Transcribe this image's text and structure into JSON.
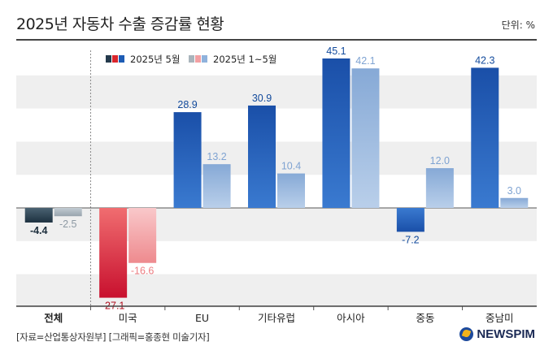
{
  "title": "2025년 자동차 수출 증감률 현황",
  "unit_label": "단위: %",
  "source": "[자료=산업통상자원부] [그래픽=홍종현 미술기자]",
  "brand": "NEWSPIM",
  "colors": {
    "may_blue": "#1d5cb4",
    "may_red": "#d9262c",
    "may_dark": "#243a4c",
    "ytd_blue": "#8fb2dc",
    "ytd_red": "#f2a0a3",
    "ytd_dark": "#a9b4bc",
    "band": "#efefef"
  },
  "chart_data": {
    "type": "bar",
    "categories": [
      "전체",
      "미국",
      "EU",
      "기타유럽",
      "아시아",
      "중동",
      "중남미"
    ],
    "series": [
      {
        "name": "2025년 5월",
        "values": [
          -4.4,
          -27.1,
          28.9,
          30.9,
          45.1,
          -7.2,
          42.3
        ]
      },
      {
        "name": "2025년 1~5월",
        "values": [
          -2.5,
          -16.6,
          13.2,
          10.4,
          42.1,
          12.0,
          3.0
        ]
      }
    ],
    "value_labels": [
      [
        "-4.4",
        "-27.1",
        "28.9",
        "30.9",
        "45.1",
        "-7.2",
        "42.3"
      ],
      [
        "-2.5",
        "-16.6",
        "13.2",
        "10.4",
        "42.1",
        "12.0",
        "3.0"
      ]
    ],
    "ylim": [
      -30,
      50
    ],
    "grid": "alternating bands",
    "legend": "top-left",
    "xlabel": "",
    "ylabel": ""
  }
}
